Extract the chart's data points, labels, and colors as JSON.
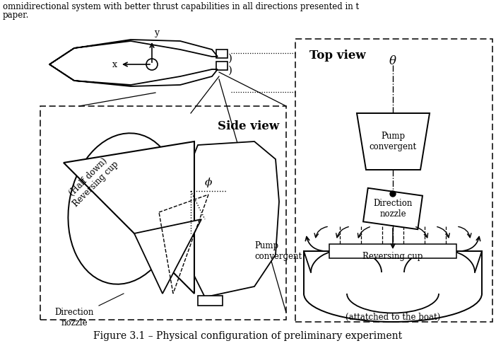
{
  "title": "Figure 3.1 – Physical configuration of preliminary experiment",
  "top_text_line1": "omnidirectional system with better thrust capabilities in all directions presented in t",
  "top_text_line2": "paper.",
  "side_view_label": "Side view",
  "top_view_label": "Top view",
  "label_pump_convergent_side": "Pump\nconvergent",
  "label_direction_nozzle_side": "Direction\nnozzle",
  "label_reversing_cup_side": "(Half down)\nReversing cup",
  "label_phi": "ϕ",
  "label_theta": "θ",
  "label_pump_convergent_top": "Pump\nconvergent",
  "label_direction_nozzle_top": "Direction\nnozzle",
  "label_reversing_cup_top": "Reversing cup",
  "label_attached": "(attatched to the boat)",
  "label_x": "x",
  "label_y": "y",
  "bg_color": "#ffffff",
  "line_color": "#000000",
  "font_family": "serif"
}
